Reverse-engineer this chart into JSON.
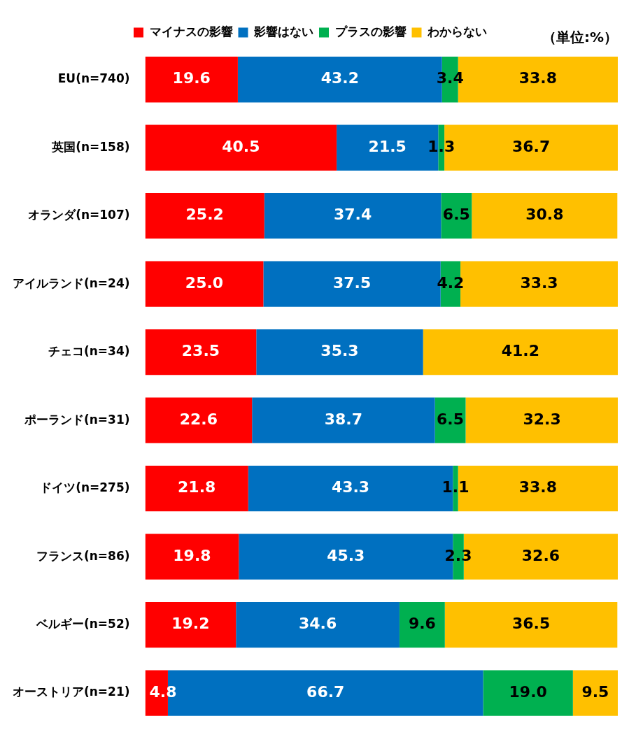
{
  "chart_data": {
    "type": "bar",
    "orientation": "horizontal",
    "stacked": true,
    "categories": [
      "EU(n=740)",
      "英国(n=158)",
      "オランダ(n=107)",
      "アイルランド(n=24)",
      "チェコ(n=34)",
      "ポーランド(n=31)",
      "ドイツ(n=275)",
      "フランス(n=86)",
      "ベルギー(n=52)",
      "オーストリア(n=21)"
    ],
    "series": [
      {
        "name": "マイナスの影響",
        "color": "#ff0000",
        "values": [
          19.6,
          40.5,
          25.2,
          25.0,
          23.5,
          22.6,
          21.8,
          19.8,
          19.2,
          4.8
        ],
        "value_labels": [
          "19.6",
          "40.5",
          "25.2",
          "25.0",
          "23.5",
          "22.6",
          "21.8",
          "19.8",
          "19.2",
          "4.8"
        ]
      },
      {
        "name": "影響はない",
        "color": "#0070c0",
        "values": [
          43.2,
          21.5,
          37.4,
          37.5,
          35.3,
          38.7,
          43.3,
          45.3,
          34.6,
          66.7
        ],
        "value_labels": [
          "43.2",
          "21.5",
          "37.4",
          "37.5",
          "35.3",
          "38.7",
          "43.3",
          "45.3",
          "34.6",
          "66.7"
        ]
      },
      {
        "name": "プラスの影響",
        "color": "#00b050",
        "values": [
          3.4,
          1.3,
          6.5,
          4.2,
          null,
          6.5,
          1.1,
          2.3,
          9.6,
          19.0
        ],
        "value_labels": [
          "3.4",
          "1.3",
          "6.5",
          "4.2",
          null,
          "6.5",
          "1.1",
          "2.3",
          "9.6",
          "19.0"
        ]
      },
      {
        "name": "わからない",
        "color": "#ffc000",
        "values": [
          33.8,
          36.7,
          30.8,
          33.3,
          41.2,
          32.3,
          33.8,
          32.6,
          36.5,
          9.5
        ],
        "value_labels": [
          "33.8",
          "36.7",
          "30.8",
          "33.3",
          "41.2",
          "32.3",
          "33.8",
          "32.6",
          "36.5",
          "9.5"
        ]
      }
    ],
    "xlim": [
      0,
      100
    ],
    "tick_labels": "y",
    "legend": "top",
    "annotations": [
      "（単位:%）"
    ]
  }
}
